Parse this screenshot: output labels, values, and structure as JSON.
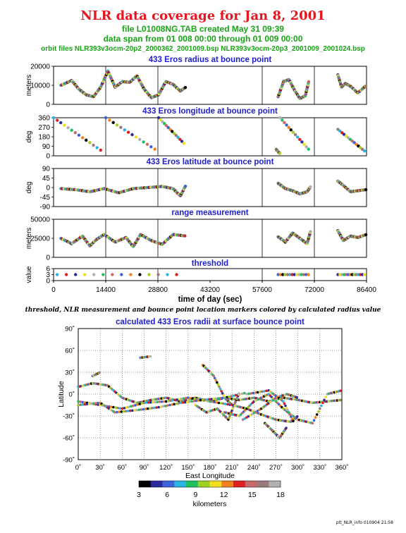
{
  "header": {
    "title": "NLR data coverage for Jan 8, 2001",
    "file_line": "file L01008NG.TAB created May 31 09:39",
    "span_line": "data span from 01 008 00:00 through 01 009 00:00",
    "orbit_line": "orbit files NLR393v3ocm-20p2_2000362_2001009.bsp NLR393v3ocm-20p3_2001009_2001024.bsp"
  },
  "caption": "threshold, NLR measurement and bounce point location markers colored by calculated radius value",
  "footer": "plt_NLR_info 010904 21:58",
  "colors": {
    "title": "#e8141e",
    "subtitle": "#16a514",
    "panel_title": "#1e1ed2"
  },
  "chart_data": [
    {
      "type": "scatter",
      "title": "433 Eros radius at bounce point",
      "ylabel": "meters",
      "xlim": [
        0,
        86400
      ],
      "ylim": [
        0,
        20000
      ],
      "yticks": [
        "0",
        "10000",
        "20000"
      ],
      "segments": [
        {
          "x": [
            2000,
            5000,
            7000,
            9000,
            11000,
            13000,
            15000,
            17000,
            19000,
            21000,
            23000,
            25000,
            27000,
            29000,
            31000,
            33000,
            35000,
            36500
          ],
          "y": [
            10000,
            12500,
            8000,
            5000,
            4000,
            9000,
            17500,
            9000,
            12000,
            11500,
            15000,
            8000,
            3500,
            5000,
            12000,
            10500,
            7000,
            9000
          ]
        },
        {
          "x": [
            62000,
            63500,
            65000,
            66500,
            68000,
            69500,
            70500
          ],
          "y": [
            4000,
            12000,
            13000,
            7500,
            3000,
            4500,
            12500
          ]
        },
        {
          "x": [
            78500,
            79500,
            80500,
            82000,
            84000,
            86400
          ],
          "y": [
            15500,
            9000,
            11000,
            9500,
            6000,
            10000
          ]
        }
      ]
    },
    {
      "type": "scatter",
      "title": "433 Eros longitude at bounce point",
      "ylabel": "deg",
      "xlim": [
        0,
        86400
      ],
      "ylim": [
        0,
        360
      ],
      "yticks": [
        "0",
        "90",
        "180",
        "270",
        "360"
      ],
      "segments": [
        {
          "x": [
            0,
            14000
          ],
          "y": [
            360,
            30
          ]
        },
        {
          "x": [
            14400,
            29000
          ],
          "y": [
            360,
            40
          ]
        },
        {
          "x": [
            29000,
            36500
          ],
          "y": [
            360,
            100
          ]
        },
        {
          "x": [
            61500,
            62500
          ],
          "y": [
            60,
            20
          ]
        },
        {
          "x": [
            62500,
            71000
          ],
          "y": [
            360,
            40
          ]
        },
        {
          "x": [
            78500,
            86400
          ],
          "y": [
            250,
            30
          ]
        }
      ]
    },
    {
      "type": "scatter",
      "title": "433 Eros latitude at bounce point",
      "ylabel": "deg",
      "xlim": [
        0,
        86400
      ],
      "ylim": [
        -90,
        90
      ],
      "yticks": [
        "-90",
        "-45",
        "0",
        "45",
        "90"
      ],
      "segments": [
        {
          "x": [
            2000,
            6000,
            10000,
            14000,
            18000,
            22000,
            26000,
            30000,
            33000,
            35000,
            36500
          ],
          "y": [
            -5,
            -10,
            -20,
            -5,
            -25,
            -5,
            0,
            5,
            -5,
            -40,
            10
          ]
        },
        {
          "x": [
            62000,
            64000,
            66000,
            68000,
            70000,
            71000
          ],
          "y": [
            20,
            -5,
            -15,
            -30,
            -20,
            5
          ]
        },
        {
          "x": [
            78500,
            80000,
            82000,
            84000,
            86400
          ],
          "y": [
            30,
            10,
            -20,
            -15,
            -10
          ]
        }
      ]
    },
    {
      "type": "scatter",
      "title": "range measurement",
      "ylabel": "meters",
      "xlim": [
        0,
        86400
      ],
      "ylim": [
        0,
        50000
      ],
      "yticks": [
        "0",
        "25000",
        "50000"
      ],
      "segments": [
        {
          "x": [
            2000,
            5000,
            8000,
            10000,
            12000,
            14000,
            17000,
            20000,
            22000,
            24000,
            27000,
            30000,
            33000,
            36500
          ],
          "y": [
            25000,
            18000,
            28000,
            15000,
            24000,
            30000,
            20000,
            26000,
            14000,
            30000,
            22000,
            17000,
            30000,
            28000
          ]
        },
        {
          "x": [
            62000,
            64000,
            66000,
            68000,
            70000,
            71000
          ],
          "y": [
            27000,
            20000,
            32000,
            25000,
            18000,
            35000
          ]
        },
        {
          "x": [
            78500,
            80000,
            82000,
            84000,
            86400
          ],
          "y": [
            35000,
            22000,
            28000,
            26000,
            30000
          ]
        }
      ]
    },
    {
      "type": "scatter",
      "title": "threshold",
      "ylabel": "value",
      "xlabel": "time of day (sec)",
      "xlim": [
        0,
        86400
      ],
      "ylim": [
        0,
        6
      ],
      "yticks": [
        "0",
        "3",
        "6"
      ],
      "xticks": [
        "0",
        "14400",
        "28800",
        "43200",
        "57600",
        "72000",
        "86400"
      ],
      "segments": [
        {
          "x": [
            1000,
            36500
          ],
          "y": [
            3,
            3
          ]
        },
        {
          "x": [
            62000,
            71000
          ],
          "y": [
            3,
            3
          ]
        },
        {
          "x": [
            78500,
            86400
          ],
          "y": [
            3,
            3
          ]
        }
      ]
    },
    {
      "type": "scatter",
      "title": "calculated 433 Eros radii at surface bounce point",
      "xlabel": "East Longitude",
      "ylabel": "Latitude",
      "xlim": [
        0,
        360
      ],
      "ylim": [
        -90,
        90
      ],
      "xticks": [
        "0˚",
        "30˚",
        "60˚",
        "90˚",
        "120˚",
        "150˚",
        "180˚",
        "210˚",
        "240˚",
        "270˚",
        "300˚",
        "330˚",
        "360˚"
      ],
      "yticks": [
        "-90˚",
        "-60˚",
        "-30˚",
        "0˚",
        "30˚",
        "60˚",
        "90˚"
      ],
      "colorbar": {
        "label": "kilometers",
        "range": [
          3,
          18
        ],
        "ticks": [
          "3",
          "6",
          "9",
          "12",
          "15",
          "18"
        ]
      },
      "tracks": [
        {
          "lon": [
            0,
            20,
            40,
            60,
            80,
            100,
            120,
            140,
            160,
            180,
            200,
            220,
            240,
            260,
            280,
            300,
            320,
            340,
            360
          ],
          "lat": [
            10,
            15,
            12,
            -5,
            -12,
            -8,
            -5,
            -10,
            -5,
            -10,
            -5,
            -8,
            -5,
            -10,
            -5,
            -8,
            -12,
            -10,
            -8
          ]
        },
        {
          "lon": [
            0,
            30,
            60,
            90,
            120,
            150,
            180,
            210
          ],
          "lat": [
            -10,
            -15,
            -20,
            -12,
            -10,
            -5,
            -10,
            -15
          ]
        },
        {
          "lon": [
            0,
            30,
            50,
            80,
            110,
            140,
            170,
            200,
            230
          ],
          "lat": [
            -15,
            -12,
            -25,
            -22,
            -18,
            -12,
            -8,
            -5,
            2
          ]
        },
        {
          "lon": [
            160,
            175,
            190,
            205,
            215,
            220
          ],
          "lat": [
            -15,
            -25,
            -20,
            -35,
            -10,
            2
          ]
        },
        {
          "lon": [
            170,
            185,
            200,
            210
          ],
          "lat": [
            40,
            25,
            -5,
            -15
          ]
        },
        {
          "lon": [
            210,
            230,
            250,
            270,
            290,
            300
          ],
          "lat": [
            -15,
            -20,
            -28,
            -35,
            -38,
            -30
          ]
        },
        {
          "lon": [
            200,
            220,
            240,
            260,
            280,
            300,
            320,
            340,
            360
          ],
          "lat": [
            -25,
            -30,
            -10,
            0,
            -20,
            -35,
            -40,
            0,
            5
          ]
        },
        {
          "lon": [
            225,
            250,
            270,
            285,
            300
          ],
          "lat": [
            -35,
            -20,
            -5,
            0,
            -5
          ]
        },
        {
          "lon": [
            230,
            260,
            280,
            295
          ],
          "lat": [
            0,
            5,
            -10,
            -40
          ]
        },
        {
          "lon": [
            255,
            265,
            275,
            285
          ],
          "lat": [
            -40,
            -50,
            -60,
            -45
          ]
        },
        {
          "lon": [
            20,
            30
          ],
          "lat": [
            25,
            30
          ]
        },
        {
          "lon": [
            85,
            100
          ],
          "lat": [
            50,
            52
          ]
        }
      ]
    }
  ]
}
